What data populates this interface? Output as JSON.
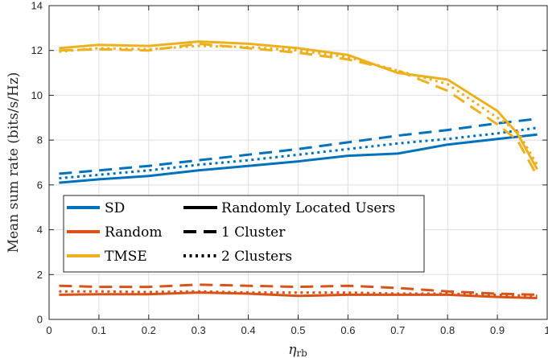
{
  "chart_data": {
    "type": "line",
    "title": "",
    "xlabel": "η_rb",
    "xlabel_main": "η",
    "xlabel_sub": "rb",
    "ylabel": "Mean sum rate (bits/s/Hz)",
    "xlim": [
      0,
      1
    ],
    "ylim": [
      0,
      14
    ],
    "xticks": [
      "0",
      "0.1",
      "0.2",
      "0.3",
      "0.4",
      "0.5",
      "0.6",
      "0.7",
      "0.8",
      "0.9",
      "1"
    ],
    "yticks": [
      "0",
      "2",
      "4",
      "6",
      "8",
      "10",
      "12",
      "14"
    ],
    "grid": true,
    "legend_position": "lower-left",
    "legend_methods": [
      {
        "name": "SD",
        "color": "#0072BD"
      },
      {
        "name": "Random",
        "color": "#D95319"
      },
      {
        "name": "TMSE",
        "color": "#EDB120"
      }
    ],
    "legend_styles": [
      {
        "name": "Randomly Located Users",
        "dash": "solid"
      },
      {
        "name": "1 Cluster",
        "dash": "dashed"
      },
      {
        "name": "2 Clusters",
        "dash": "dotted"
      }
    ],
    "series": [
      {
        "method": "SD",
        "style": "Randomly Located Users",
        "color": "#0072BD",
        "dash": "solid",
        "x": [
          0.02,
          0.1,
          0.2,
          0.3,
          0.4,
          0.5,
          0.6,
          0.7,
          0.8,
          0.9,
          0.98
        ],
        "y": [
          6.1,
          6.25,
          6.4,
          6.65,
          6.85,
          7.05,
          7.3,
          7.4,
          7.8,
          8.05,
          8.25
        ]
      },
      {
        "method": "SD",
        "style": "1 Cluster",
        "color": "#0072BD",
        "dash": "dashed",
        "x": [
          0.02,
          0.1,
          0.2,
          0.3,
          0.4,
          0.5,
          0.6,
          0.7,
          0.8,
          0.9,
          0.98
        ],
        "y": [
          6.5,
          6.65,
          6.85,
          7.1,
          7.35,
          7.6,
          7.9,
          8.2,
          8.45,
          8.75,
          8.95
        ]
      },
      {
        "method": "SD",
        "style": "2 Clusters",
        "color": "#0072BD",
        "dash": "dotted",
        "x": [
          0.02,
          0.1,
          0.2,
          0.3,
          0.4,
          0.5,
          0.6,
          0.7,
          0.8,
          0.9,
          0.98
        ],
        "y": [
          6.3,
          6.45,
          6.65,
          6.9,
          7.1,
          7.35,
          7.6,
          7.85,
          8.05,
          8.3,
          8.55
        ]
      },
      {
        "method": "Random",
        "style": "Randomly Located Users",
        "color": "#D95319",
        "dash": "solid",
        "x": [
          0.02,
          0.1,
          0.2,
          0.3,
          0.4,
          0.5,
          0.6,
          0.7,
          0.8,
          0.9,
          0.98
        ],
        "y": [
          1.1,
          1.12,
          1.12,
          1.2,
          1.15,
          1.05,
          1.1,
          1.1,
          1.1,
          1.0,
          0.95
        ]
      },
      {
        "method": "Random",
        "style": "1 Cluster",
        "color": "#D95319",
        "dash": "dashed",
        "x": [
          0.02,
          0.1,
          0.2,
          0.3,
          0.4,
          0.5,
          0.6,
          0.7,
          0.8,
          0.9,
          0.98
        ],
        "y": [
          1.5,
          1.45,
          1.45,
          1.55,
          1.5,
          1.45,
          1.5,
          1.4,
          1.25,
          1.15,
          1.1
        ]
      },
      {
        "method": "Random",
        "style": "2 Clusters",
        "color": "#D95319",
        "dash": "dotted",
        "x": [
          0.02,
          0.1,
          0.2,
          0.3,
          0.4,
          0.5,
          0.6,
          0.7,
          0.8,
          0.9,
          0.98
        ],
        "y": [
          1.25,
          1.25,
          1.22,
          1.25,
          1.2,
          1.2,
          1.2,
          1.15,
          1.15,
          1.1,
          1.05
        ]
      },
      {
        "method": "TMSE",
        "style": "Randomly Located Users",
        "color": "#EDB120",
        "dash": "solid",
        "x": [
          0.02,
          0.1,
          0.2,
          0.3,
          0.4,
          0.5,
          0.6,
          0.7,
          0.8,
          0.9,
          0.94,
          0.98
        ],
        "y": [
          12.1,
          12.25,
          12.2,
          12.4,
          12.3,
          12.1,
          11.8,
          11.0,
          10.7,
          9.3,
          8.3,
          6.7
        ]
      },
      {
        "method": "TMSE",
        "style": "1 Cluster",
        "color": "#EDB120",
        "dash": "dashed",
        "x": [
          0.02,
          0.1,
          0.2,
          0.3,
          0.4,
          0.5,
          0.6,
          0.7,
          0.8,
          0.9,
          0.94,
          0.98
        ],
        "y": [
          12.0,
          12.05,
          12.0,
          12.3,
          12.1,
          11.9,
          11.6,
          11.1,
          10.2,
          8.7,
          8.0,
          6.4
        ]
      },
      {
        "method": "TMSE",
        "style": "2 Clusters",
        "color": "#EDB120",
        "dash": "dotted",
        "x": [
          0.02,
          0.1,
          0.2,
          0.3,
          0.4,
          0.5,
          0.6,
          0.7,
          0.8,
          0.9,
          0.94,
          0.98
        ],
        "y": [
          11.95,
          12.1,
          12.05,
          12.2,
          12.15,
          12.0,
          11.7,
          11.1,
          10.5,
          9.0,
          8.4,
          6.9
        ]
      }
    ]
  }
}
